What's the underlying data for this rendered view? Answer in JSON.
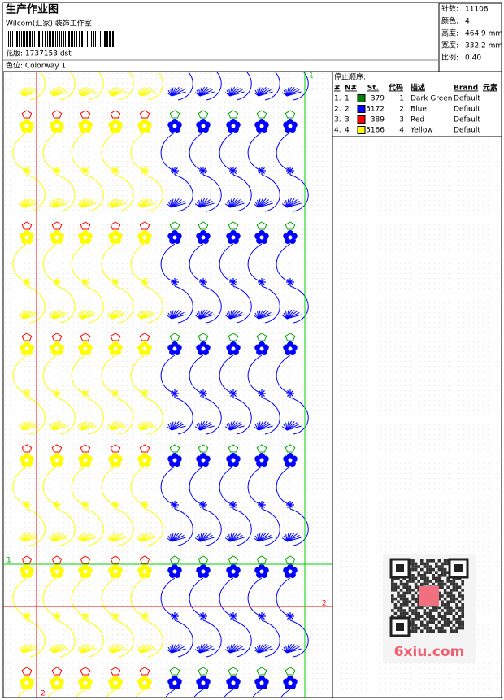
{
  "header": {
    "title": "生产作业图",
    "company": "Wilcom(汇家) 装饰工作室",
    "design": "花版: 1737153.dst",
    "colorway": "色位: Colorway 1"
  },
  "info": [
    {
      "label": "针数:",
      "value": "11108"
    },
    {
      "label": "颜色:",
      "value": "4"
    },
    {
      "label": "高度:",
      "value": "464.9 mm"
    },
    {
      "label": "宽度:",
      "value": "332.2 mm"
    },
    {
      "label": "比例:",
      "value": "0.40"
    }
  ],
  "table": {
    "title": "停止顺序:",
    "columns": [
      "#",
      "N#",
      "St.",
      "代码",
      "描述",
      "Brand",
      "元素"
    ],
    "rows": [
      {
        "index": "1.",
        "n": "1",
        "color": "#008000",
        "st": "379",
        "code": "1",
        "desc": "Dark Green",
        "brand": "Default"
      },
      {
        "index": "2.",
        "n": "2",
        "color": "#0000ff",
        "st": "5172",
        "code": "2",
        "desc": "Blue",
        "brand": "Default"
      },
      {
        "index": "3.",
        "n": "3",
        "color": "#ff0000",
        "st": "389",
        "code": "3",
        "desc": "Red",
        "brand": "Default"
      },
      {
        "index": "4.",
        "n": "4",
        "color": "#ffff00",
        "st": "5166",
        "code": "4",
        "desc": "Yellow",
        "brand": "Default"
      }
    ]
  },
  "guides": {
    "green_v": "1",
    "green_h": "1",
    "red_v": "2",
    "red_h": "2"
  },
  "watermark": "6xiu.com"
}
